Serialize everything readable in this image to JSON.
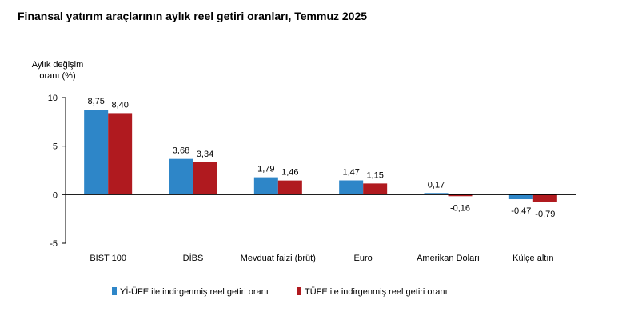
{
  "chart_data": {
    "type": "bar",
    "title": "Finansal yatırım araçlarının aylık reel getiri oranları, Temmuz 2025",
    "ylabel_lines": [
      "Aylık değişim",
      "oranı (%)"
    ],
    "xlabel": "",
    "ylim": [
      -5,
      10
    ],
    "yticks": [
      10,
      5,
      0,
      -5
    ],
    "grid": false,
    "legend_position": "bottom",
    "categories": [
      "BIST 100",
      "DİBS",
      "Mevduat faizi (brüt)",
      "Euro",
      "Amerikan Doları",
      "Külçe altın"
    ],
    "series": [
      {
        "name": "Yİ-ÜFE ile indirgenmiş reel getiri oranı",
        "color": "#2E86C8",
        "values": [
          8.75,
          3.68,
          1.79,
          1.47,
          0.17,
          -0.47
        ],
        "labels": [
          "8,75",
          "3,68",
          "1,79",
          "1,47",
          "0,17",
          "-0,47"
        ]
      },
      {
        "name": "TÜFE ile indirgenmiş reel getiri oranı",
        "color": "#B01A1F",
        "values": [
          8.4,
          3.34,
          1.46,
          1.15,
          -0.16,
          -0.79
        ],
        "labels": [
          "8,40",
          "3,34",
          "1,46",
          "1,15",
          "-0,16",
          "-0,79"
        ]
      }
    ]
  }
}
